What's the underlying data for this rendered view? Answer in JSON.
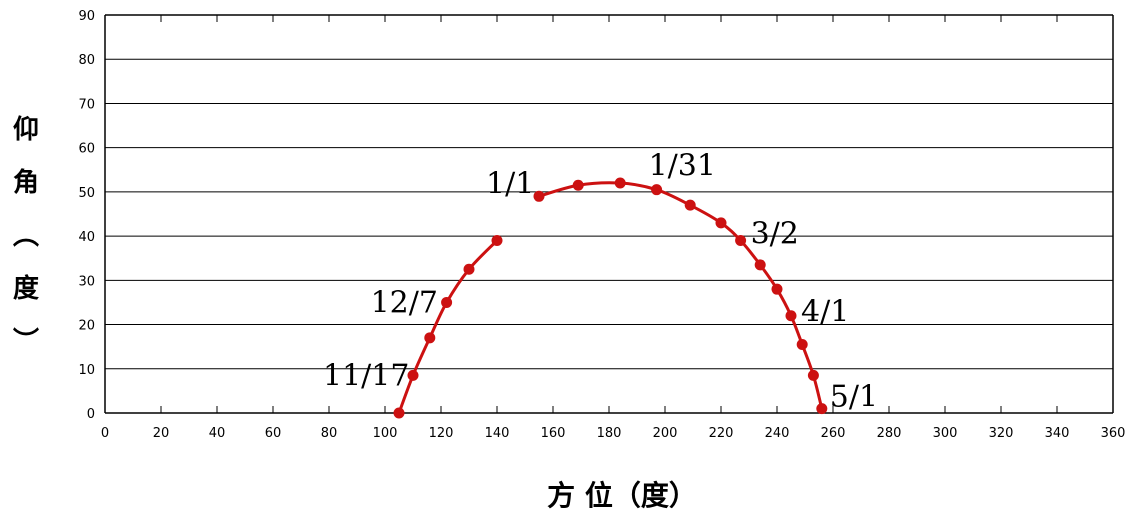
{
  "chart_data": {
    "type": "line",
    "xlabel": "方 位（度）",
    "ylabel_chars": [
      "仰",
      "角",
      "︵",
      "度",
      "︶"
    ],
    "xlim": [
      0,
      360
    ],
    "ylim": [
      0,
      90
    ],
    "xticks": [
      0,
      20,
      40,
      60,
      80,
      100,
      120,
      140,
      160,
      180,
      200,
      220,
      240,
      260,
      280,
      300,
      320,
      340,
      360
    ],
    "yticks": [
      0,
      10,
      20,
      30,
      40,
      50,
      60,
      70,
      80,
      90
    ],
    "grid": "horizontal",
    "series": [
      {
        "color": "#cc1111",
        "x": [
          105,
          110,
          116,
          122,
          130,
          140
        ],
        "y": [
          0,
          8.5,
          17,
          25,
          32.5,
          39
        ]
      },
      {
        "color": "#cc1111",
        "x": [
          155,
          169,
          184,
          197,
          209,
          220,
          227,
          234,
          240,
          245,
          249,
          253,
          256
        ],
        "y": [
          49,
          51.5,
          52,
          50.5,
          47,
          43,
          39,
          33.5,
          28,
          22,
          15.5,
          8.5,
          1
        ]
      }
    ],
    "annotations": [
      {
        "text": "1/1",
        "x": 155,
        "y": 49
      },
      {
        "text": "1/31",
        "x": 197,
        "y": 50.5
      },
      {
        "text": "3/2",
        "x": 227,
        "y": 39
      },
      {
        "text": "4/1",
        "x": 245,
        "y": 22
      },
      {
        "text": "5/1",
        "x": 256,
        "y": 1
      },
      {
        "text": "12/7",
        "x": 122,
        "y": 25
      },
      {
        "text": "11/17",
        "x": 110,
        "y": 8.5
      }
    ]
  }
}
